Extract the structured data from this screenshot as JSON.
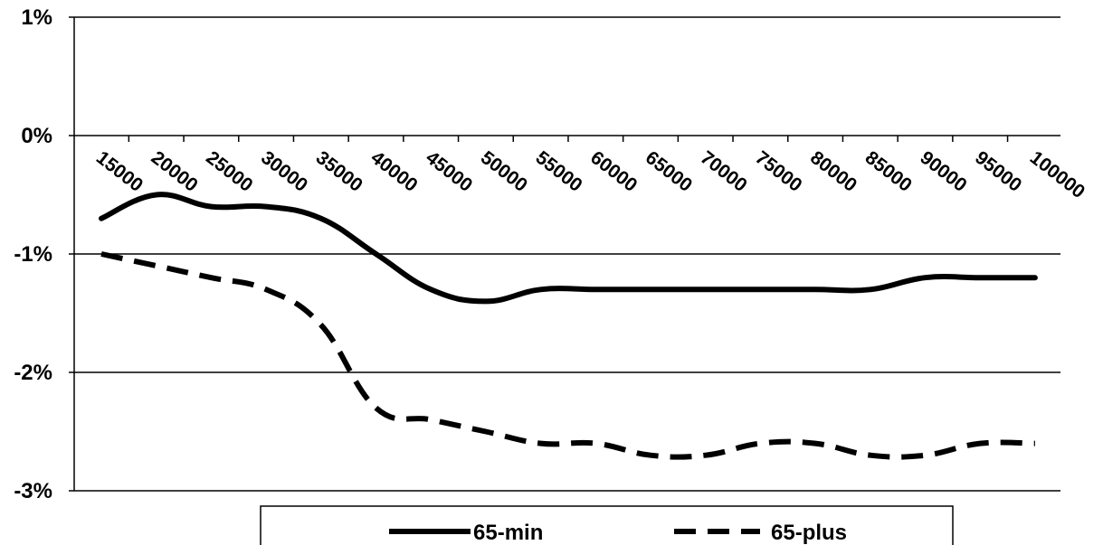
{
  "chart_data": {
    "type": "line",
    "title": "",
    "xlabel": "",
    "ylabel": "",
    "categories": [
      "15000",
      "20000",
      "25000",
      "30000",
      "35000",
      "40000",
      "45000",
      "50000",
      "55000",
      "60000",
      "65000",
      "70000",
      "75000",
      "80000",
      "85000",
      "90000",
      "95000",
      "100000"
    ],
    "y_ticks": [
      "1%",
      "0%",
      "-1%",
      "-2%",
      "-3%"
    ],
    "y_tick_values": [
      1,
      0,
      -1,
      -2,
      -3
    ],
    "ylim": [
      -3,
      1
    ],
    "grid": "horizontal",
    "legend_position": "bottom",
    "series": [
      {
        "name": "65-min",
        "style": "solid",
        "color": "#000000",
        "values": [
          -0.7,
          -0.5,
          -0.6,
          -0.6,
          -0.7,
          -1.0,
          -1.3,
          -1.4,
          -1.3,
          -1.3,
          -1.3,
          -1.3,
          -1.3,
          -1.3,
          -1.3,
          -1.2,
          -1.2,
          -1.2
        ]
      },
      {
        "name": "65-plus",
        "style": "dashed",
        "color": "#000000",
        "values": [
          -1.0,
          -1.1,
          -1.2,
          -1.3,
          -1.6,
          -2.3,
          -2.4,
          -2.5,
          -2.6,
          -2.6,
          -2.7,
          -2.7,
          -2.6,
          -2.6,
          -2.7,
          -2.7,
          -2.6,
          -2.6
        ]
      }
    ]
  }
}
